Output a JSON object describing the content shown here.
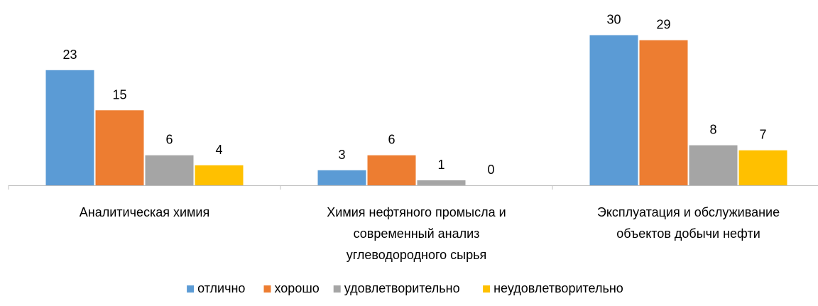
{
  "chart_data": {
    "type": "bar",
    "title": "",
    "xlabel": "",
    "ylabel": "",
    "ylim": [
      0,
      32
    ],
    "grid": false,
    "legend_position": "bottom",
    "categories": [
      [
        "Аналитическая химия"
      ],
      [
        "Химия нефтяного промысла и",
        "современный анализ",
        "углеводородного сырья"
      ],
      [
        "Эксплуатация и обслуживание",
        "объектов добычи нефти"
      ]
    ],
    "series": [
      {
        "name": "отлично",
        "color": "#5B9BD5",
        "values": [
          23,
          3,
          30
        ]
      },
      {
        "name": "хорошо",
        "color": "#ED7D31",
        "values": [
          15,
          6,
          29
        ]
      },
      {
        "name": "удовлетворительно",
        "color": "#A5A5A5",
        "values": [
          6,
          1,
          8
        ]
      },
      {
        "name": "неудовлетворительно",
        "color": "#FFC000",
        "values": [
          4,
          0,
          7
        ]
      }
    ]
  }
}
